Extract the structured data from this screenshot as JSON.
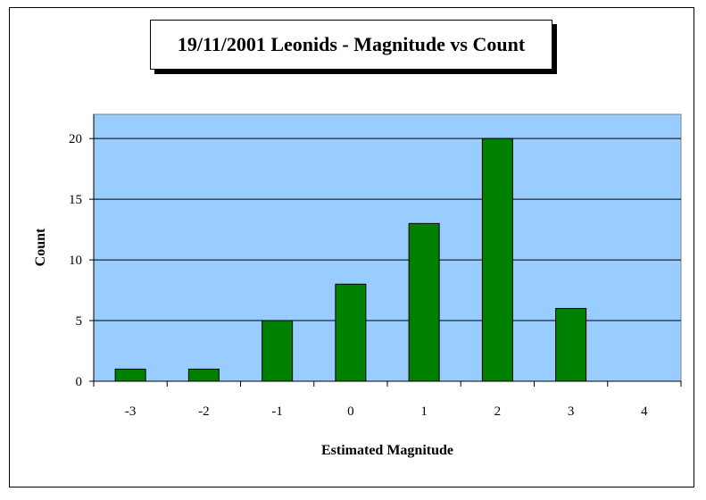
{
  "chart_data": {
    "type": "bar",
    "title": "19/11/2001 Leonids - Magnitude vs Count",
    "xlabel": "Estimated Magnitude",
    "ylabel": "Count",
    "categories": [
      "-3",
      "-2",
      "-1",
      "0",
      "1",
      "2",
      "3",
      "4"
    ],
    "values": [
      1,
      1,
      5,
      8,
      13,
      20,
      6,
      0
    ],
    "ylim": [
      0,
      22
    ],
    "yticks": [
      "0",
      "5",
      "10",
      "15",
      "20"
    ],
    "grid": true,
    "legend": "none",
    "colors": {
      "plot_background": "#99ccff",
      "bar_fill": "#008000",
      "bar_stroke": "#000000",
      "gridline": "#000000"
    }
  }
}
